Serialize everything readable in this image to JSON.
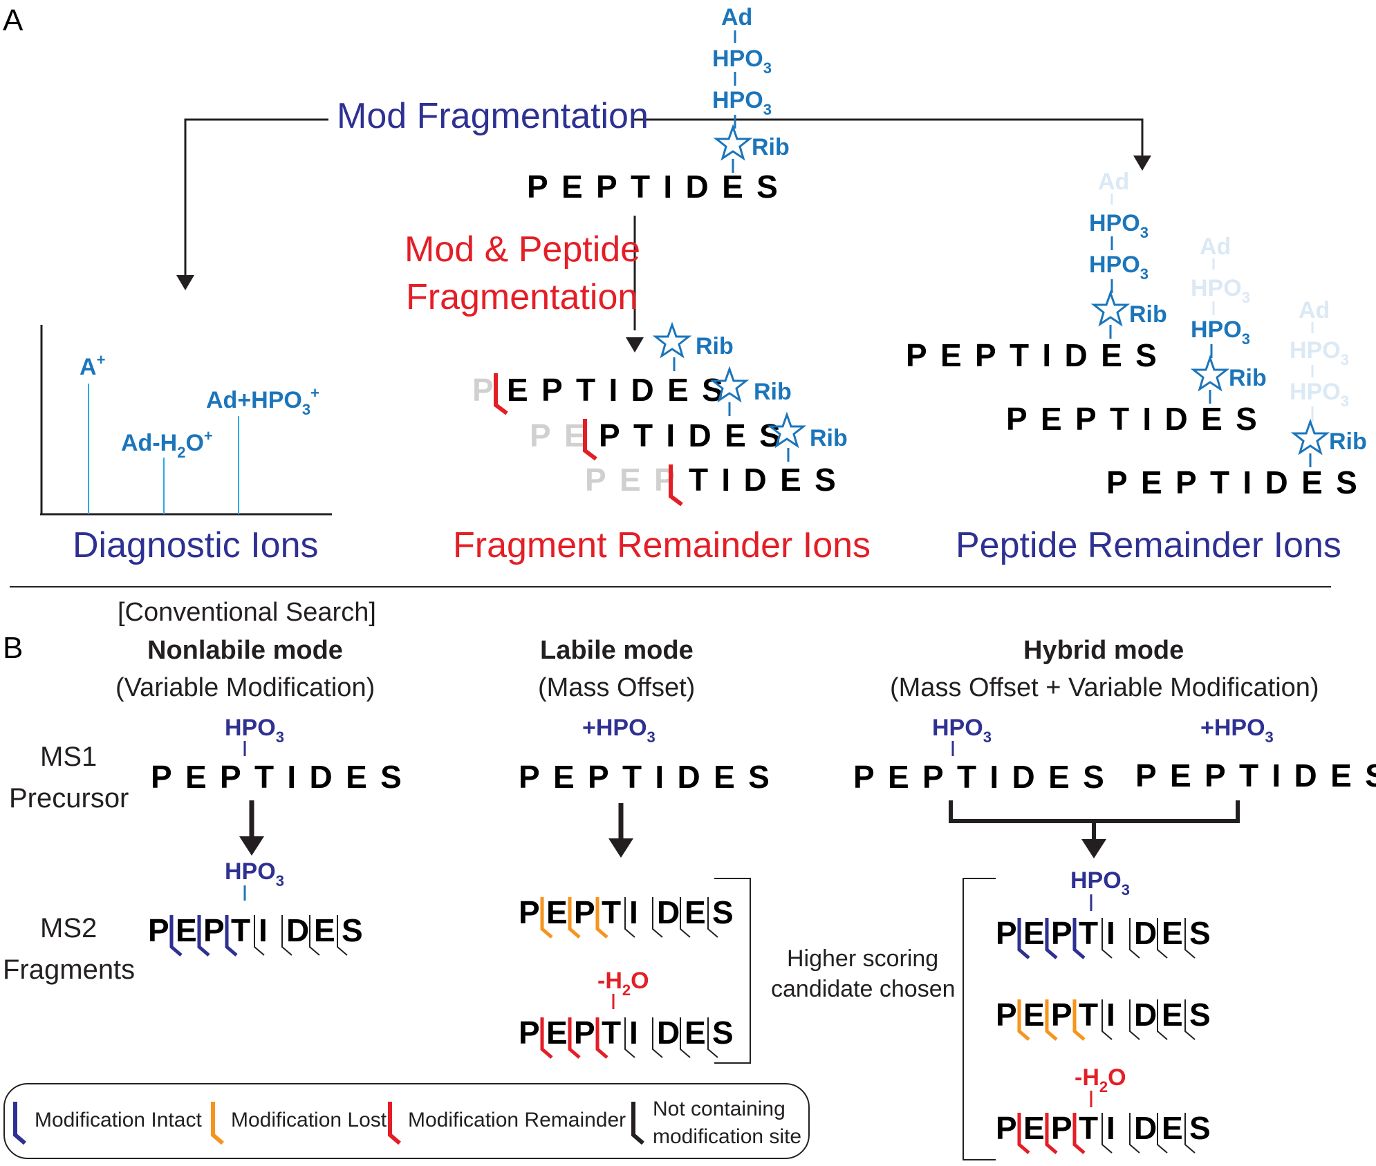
{
  "panels": {
    "a": "A",
    "b": "B"
  },
  "part_a": {
    "mod_fragmentation": "Mod Fragmentation",
    "mod_peptide_fragmentation_line1": "Mod & Peptide",
    "mod_peptide_fragmentation_line2": "Fragmentation",
    "diagnostic_ions": "Diagnostic Ions",
    "fragment_remainder_ions": "Fragment Remainder Ions",
    "peptide_remainder_ions": "Peptide Remainder Ions",
    "peptide": "PEPTIDES",
    "peptide_tail": "S",
    "ad": "Ad",
    "hpo": "HPO",
    "hpo_sub": "3",
    "rib": "Rib",
    "ion_a": "A",
    "ion_a_sup": "+",
    "ion_ad_h2o_1": "Ad-H",
    "ion_ad_h2o_sub": "2",
    "ion_ad_h2o_2": "O",
    "ion_ad_h2o_sup": "+",
    "ion_ad_hpo": "Ad+HPO",
    "ion_ad_hpo_sub": "3",
    "ion_ad_hpo_sup": "+",
    "frag1_grey": "P",
    "frag1_black": "EPTIDES",
    "frag2_grey": "PE",
    "frag2_black": "PTIDES",
    "frag3_grey": "PEP",
    "frag3_black": "TIDES"
  },
  "part_b": {
    "conventional": "[Conventional Search]",
    "nonlabile_title": "Nonlabile mode",
    "nonlabile_sub": "(Variable Modification)",
    "labile_title": "Labile mode",
    "labile_sub": "(Mass Offset)",
    "hybrid_title": "Hybrid mode",
    "hybrid_sub": "(Mass Offset + Variable Modification)",
    "ms1_line1": "MS1",
    "ms1_line2": "Precursor",
    "ms2_line1": "MS2",
    "ms2_line2": "Fragments",
    "peptide": "PEPTIDES",
    "hpo": "HPO",
    "hpo_sub": "3",
    "plus_hpo": "+HPO",
    "minus_h2o_1": "-H",
    "minus_h2o_sub": "2",
    "minus_h2o_2": "O",
    "higher_scoring_line1": "Higher scoring",
    "higher_scoring_line2": "candidate chosen",
    "fragment_letters": [
      "P",
      "E",
      "P",
      "T",
      "I",
      "D",
      "E",
      "S"
    ]
  },
  "legend": {
    "intact": "Modification Intact",
    "lost": "Modification Lost",
    "remainder": "Modification Remainder",
    "not_containing_line1": "Not containing",
    "not_containing_line2": "modification site"
  },
  "colors": {
    "navy": "#2e3192",
    "blue": "#1b75bb",
    "red": "#e41e26",
    "orange": "#f7941d",
    "faded": "#dbe9f5",
    "spectrum_line": "#29abe2"
  }
}
